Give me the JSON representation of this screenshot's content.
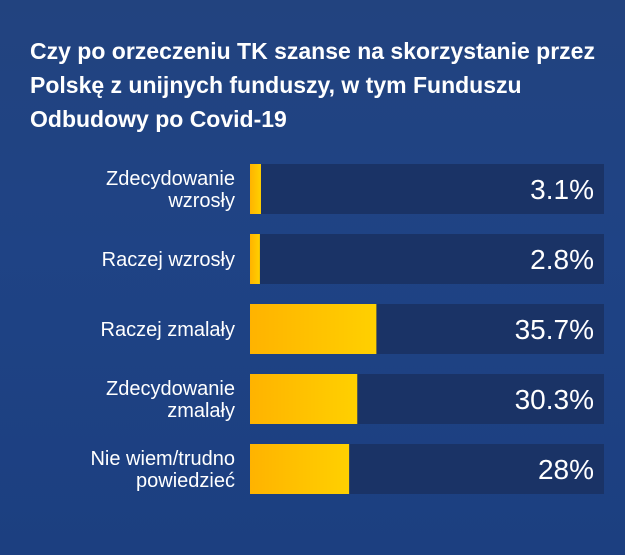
{
  "chart_data": {
    "type": "bar",
    "orientation": "horizontal",
    "title": "Czy po orzeczeniu TK szanse na skorzystanie przez Polskę z unijnych funduszy, w tym Funduszu Odbudowy po Covid-19",
    "categories": [
      [
        "Zdecydowanie",
        "wzrosły"
      ],
      [
        "Raczej wzrosły"
      ],
      [
        "Raczej zmalały"
      ],
      [
        "Zdecydowanie",
        "zmalały"
      ],
      [
        "Nie wiem/trudno",
        "powiedzieć"
      ]
    ],
    "values": [
      3.1,
      2.8,
      35.7,
      30.3,
      28
    ],
    "value_labels": [
      "3.1%",
      "2.8%",
      "35.7%",
      "30.3%",
      "28%"
    ],
    "xlim": [
      0,
      100
    ],
    "grid": false,
    "legend": "none",
    "colors": {
      "background": "#1f4385",
      "track": "#1a3366",
      "bar_start": "#ffb300",
      "bar_end": "#ffd000",
      "text": "#ffffff"
    }
  }
}
